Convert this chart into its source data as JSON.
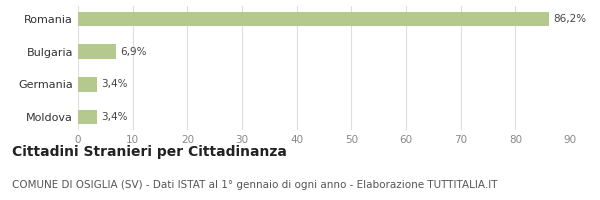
{
  "categories": [
    "Romania",
    "Bulgaria",
    "Germania",
    "Moldova"
  ],
  "values": [
    86.2,
    6.9,
    3.4,
    3.4
  ],
  "labels": [
    "86,2%",
    "6,9%",
    "3,4%",
    "3,4%"
  ],
  "bar_color": "#b5c98e",
  "xlim": [
    0,
    90
  ],
  "xticks": [
    0,
    10,
    20,
    30,
    40,
    50,
    60,
    70,
    80,
    90
  ],
  "title_bold": "Cittadini Stranieri per Cittadinanza",
  "subtitle": "COMUNE DI OSIGLIA (SV) - Dati ISTAT al 1° gennaio di ogni anno - Elaborazione TUTTITALIA.IT",
  "title_fontsize": 10,
  "subtitle_fontsize": 7.5,
  "label_fontsize": 7.5,
  "tick_fontsize": 7.5,
  "ytick_fontsize": 8,
  "background_color": "#ffffff",
  "grid_color": "#dddddd",
  "bar_height": 0.45
}
